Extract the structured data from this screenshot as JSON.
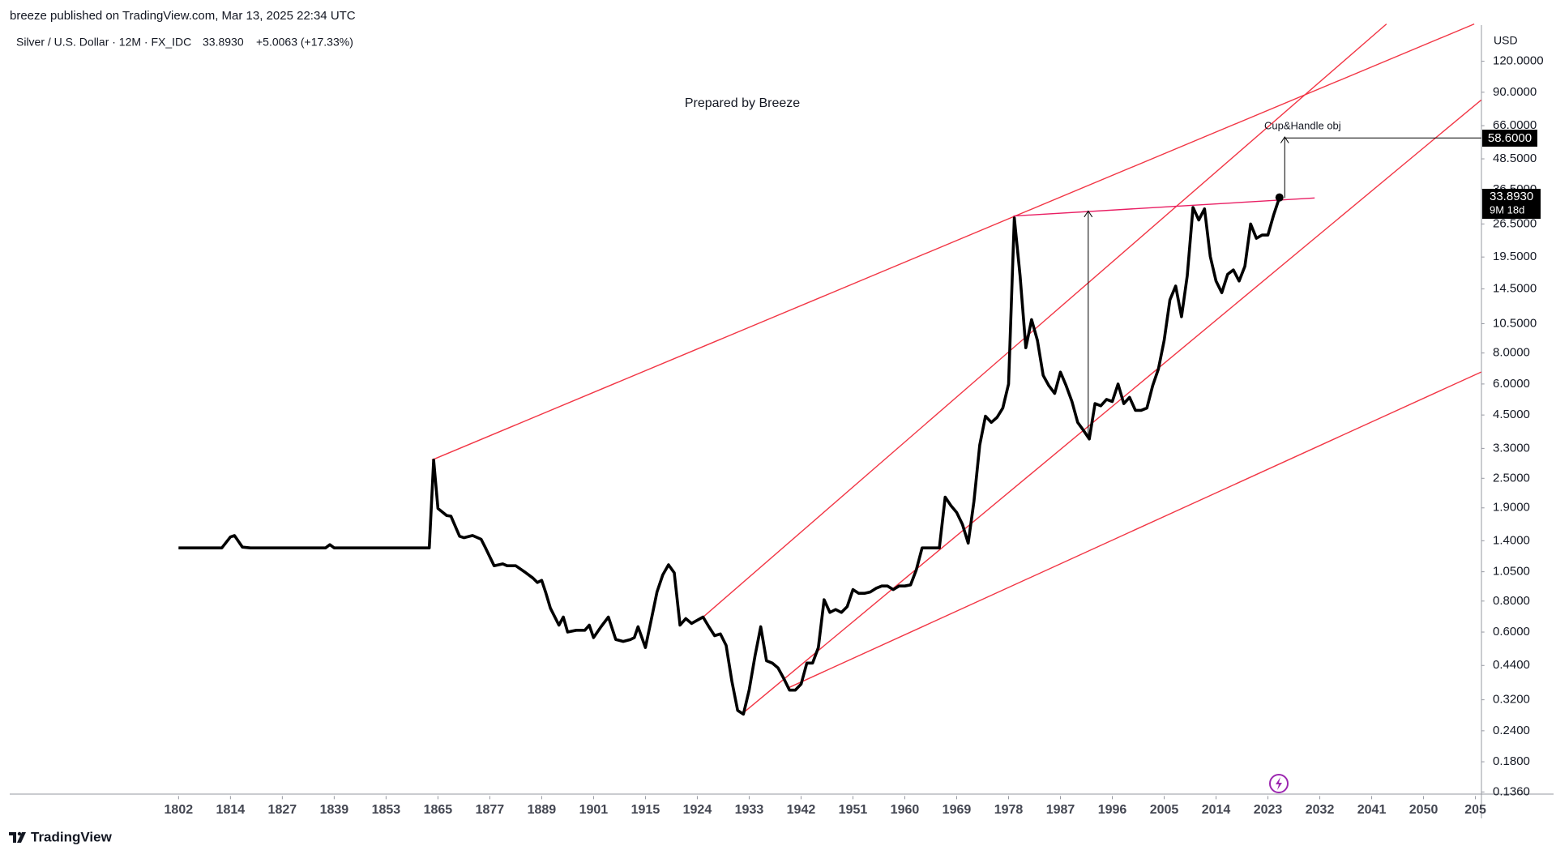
{
  "header": {
    "publisher_line": "breeze published on TradingView.com, Mar 13, 2025 22:34 UTC"
  },
  "footer": {
    "brand": "TradingView"
  },
  "chart_data": {
    "type": "line",
    "symbol": "Silver / U.S. Dollar · 12M · FX_IDC",
    "last": "33.8930",
    "change": "+5.0063 (+17.33%)",
    "subtitle": "Prepared by Breeze",
    "currency": "USD",
    "countdown": "9M 18d",
    "target_label": "58.6000",
    "target_note": "Cup&Handle obj",
    "color": "#000000",
    "log_scale": true,
    "grid": false,
    "x": [
      1802,
      1812,
      1814,
      1815,
      1817,
      1819,
      1837,
      1838,
      1839,
      1863,
      1864,
      1865,
      1867,
      1868,
      1870,
      1871,
      1873,
      1875,
      1876,
      1878,
      1880,
      1881,
      1883,
      1885,
      1887,
      1888,
      1889,
      1890,
      1891,
      1893,
      1894,
      1895,
      1897,
      1899,
      1900,
      1901,
      1903,
      1905,
      1907,
      1909,
      1911,
      1912,
      1913,
      1915,
      1916,
      1917,
      1918,
      1919,
      1920,
      1921,
      1922,
      1923,
      1924,
      1925,
      1926,
      1927,
      1928,
      1929,
      1930,
      1931,
      1932,
      1933,
      1934,
      1935,
      1936,
      1937,
      1938,
      1939,
      1940,
      1941,
      1942,
      1943,
      1944,
      1945,
      1946,
      1947,
      1948,
      1949,
      1950,
      1951,
      1952,
      1953,
      1954,
      1955,
      1956,
      1957,
      1958,
      1959,
      1960,
      1961,
      1962,
      1963,
      1964,
      1965,
      1966,
      1967,
      1968,
      1969,
      1970,
      1971,
      1972,
      1973,
      1974,
      1975,
      1976,
      1977,
      1978,
      1979,
      1980,
      1981,
      1982,
      1983,
      1984,
      1985,
      1986,
      1987,
      1988,
      1989,
      1990,
      1991,
      1992,
      1993,
      1994,
      1995,
      1996,
      1997,
      1998,
      1999,
      2000,
      2001,
      2002,
      2003,
      2004,
      2005,
      2006,
      2007,
      2008,
      2009,
      2010,
      2011,
      2012,
      2013,
      2014,
      2015,
      2016,
      2017,
      2018,
      2019,
      2020,
      2021,
      2022,
      2023,
      2024,
      2025
    ],
    "values": [
      1.31,
      1.31,
      1.45,
      1.47,
      1.32,
      1.31,
      1.31,
      1.35,
      1.31,
      1.31,
      2.96,
      1.89,
      1.77,
      1.76,
      1.46,
      1.44,
      1.47,
      1.42,
      1.31,
      1.11,
      1.13,
      1.11,
      1.11,
      1.05,
      0.99,
      0.95,
      0.97,
      0.86,
      0.75,
      0.64,
      0.69,
      0.6,
      0.61,
      0.61,
      0.64,
      0.57,
      0.63,
      0.69,
      0.56,
      0.55,
      0.56,
      0.57,
      0.63,
      0.52,
      0.67,
      0.87,
      1.02,
      1.12,
      1.04,
      0.64,
      0.68,
      0.65,
      0.67,
      0.69,
      0.63,
      0.58,
      0.59,
      0.53,
      0.38,
      0.29,
      0.28,
      0.35,
      0.48,
      0.63,
      0.46,
      0.45,
      0.43,
      0.39,
      0.35,
      0.35,
      0.37,
      0.45,
      0.45,
      0.52,
      0.81,
      0.72,
      0.74,
      0.72,
      0.76,
      0.89,
      0.86,
      0.86,
      0.87,
      0.9,
      0.92,
      0.92,
      0.89,
      0.92,
      0.92,
      0.93,
      1.07,
      1.31,
      1.31,
      1.31,
      1.31,
      2.1,
      1.94,
      1.82,
      1.63,
      1.37,
      2.02,
      3.4,
      4.45,
      4.2,
      4.4,
      4.8,
      6.0,
      28.0,
      16.4,
      8.4,
      10.9,
      9.0,
      6.5,
      5.9,
      5.5,
      6.7,
      5.9,
      5.1,
      4.2,
      3.9,
      3.6,
      5.0,
      4.9,
      5.2,
      5.1,
      6.0,
      5.0,
      5.3,
      4.7,
      4.7,
      4.8,
      5.9,
      6.9,
      9.0,
      13.1,
      14.9,
      11.2,
      16.4,
      30.9,
      27.5,
      30.5,
      19.6,
      15.6,
      14.0,
      16.6,
      17.3,
      15.6,
      17.9,
      26.5,
      23.2,
      23.9,
      23.9,
      28.9,
      33.893
    ],
    "xlim": [
      1763,
      2060
    ],
    "xticks": [
      1802,
      1814,
      1827,
      1839,
      1853,
      1865,
      1877,
      1889,
      1901,
      1915,
      1924,
      1933,
      1942,
      1951,
      1960,
      1969,
      1978,
      1987,
      1996,
      2005,
      2014,
      2023,
      2032,
      2041,
      2050,
      {
        "value": 2059,
        "label": "205"
      }
    ],
    "ylim": [
      0.131,
      168
    ],
    "yticks": [
      {
        "value": 120,
        "label": "120.0000"
      },
      {
        "value": 90,
        "label": "90.0000"
      },
      {
        "value": 66,
        "label": "66.0000"
      },
      {
        "value": 48.5,
        "label": "48.5000"
      },
      {
        "value": 36.5,
        "label": "36.5000"
      },
      {
        "value": 26.5,
        "label": "26.5000"
      },
      {
        "value": 19.5,
        "label": "19.5000"
      },
      {
        "value": 14.5,
        "label": "14.5000"
      },
      {
        "value": 10.5,
        "label": "10.5000"
      },
      {
        "value": 8,
        "label": "8.0000"
      },
      {
        "value": 6,
        "label": "6.0000"
      },
      {
        "value": 4.5,
        "label": "4.5000"
      },
      {
        "value": 3.3,
        "label": "3.3000"
      },
      {
        "value": 2.5,
        "label": "2.5000"
      },
      {
        "value": 1.9,
        "label": "1.9000"
      },
      {
        "value": 1.4,
        "label": "1.4000"
      },
      {
        "value": 1.05,
        "label": "1.0500"
      },
      {
        "value": 0.8,
        "label": "0.8000"
      },
      {
        "value": 0.6,
        "label": "0.6000"
      },
      {
        "value": 0.44,
        "label": "0.4400"
      },
      {
        "value": 0.32,
        "label": "0.3200"
      },
      {
        "value": 0.24,
        "label": "0.2400"
      },
      {
        "value": 0.18,
        "label": "0.1800"
      },
      {
        "value": 0.136,
        "label": "0.1360"
      }
    ]
  }
}
